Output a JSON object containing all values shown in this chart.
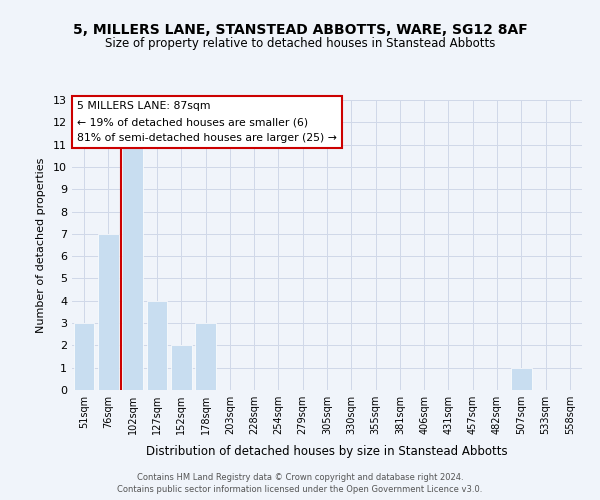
{
  "title": "5, MILLERS LANE, STANSTEAD ABBOTTS, WARE, SG12 8AF",
  "subtitle": "Size of property relative to detached houses in Stanstead Abbotts",
  "xlabel": "Distribution of detached houses by size in Stanstead Abbotts",
  "ylabel": "Number of detached properties",
  "bin_labels": [
    "51sqm",
    "76sqm",
    "102sqm",
    "127sqm",
    "152sqm",
    "178sqm",
    "203sqm",
    "228sqm",
    "254sqm",
    "279sqm",
    "305sqm",
    "330sqm",
    "355sqm",
    "381sqm",
    "406sqm",
    "431sqm",
    "457sqm",
    "482sqm",
    "507sqm",
    "533sqm",
    "558sqm"
  ],
  "bar_values": [
    3,
    7,
    11,
    4,
    2,
    3,
    0,
    0,
    0,
    0,
    0,
    0,
    0,
    0,
    0,
    0,
    0,
    0,
    1,
    0,
    0
  ],
  "bar_color": "#c8ddf0",
  "vline_color": "#cc0000",
  "ylim": [
    0,
    13
  ],
  "yticks": [
    0,
    1,
    2,
    3,
    4,
    5,
    6,
    7,
    8,
    9,
    10,
    11,
    12,
    13
  ],
  "annotation_text": "5 MILLERS LANE: 87sqm\n← 19% of detached houses are smaller (6)\n81% of semi-detached houses are larger (25) →",
  "annotation_bbox_color": "#ffffff",
  "annotation_bbox_edgecolor": "#cc0000",
  "footer1": "Contains HM Land Registry data © Crown copyright and database right 2024.",
  "footer2": "Contains public sector information licensed under the Open Government Licence v3.0.",
  "grid_color": "#d0d8e8",
  "background_color": "#f0f4fa"
}
